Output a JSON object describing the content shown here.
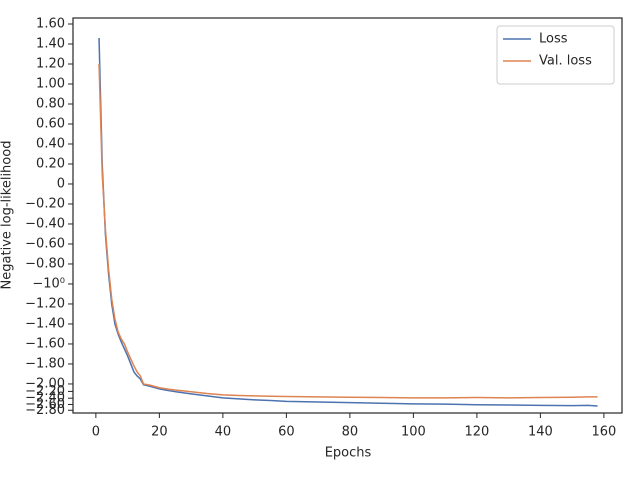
{
  "chart_data": {
    "type": "line",
    "xlabel": "Epochs",
    "ylabel": "Negative log-likelihood",
    "yscale": "symlog",
    "linthresh": 2,
    "x": [
      1,
      2,
      3,
      4,
      5,
      6,
      7,
      8,
      9,
      10,
      11,
      12,
      13,
      14,
      15,
      17,
      20,
      23,
      26,
      30,
      35,
      40,
      45,
      50,
      55,
      60,
      70,
      80,
      90,
      100,
      110,
      120,
      130,
      140,
      150,
      155,
      158
    ],
    "series": [
      {
        "name": "Loss",
        "color": "#4c72b0",
        "values": [
          1.46,
          0.2,
          -0.5,
          -0.9,
          -1.2,
          -1.4,
          -1.5,
          -1.58,
          -1.65,
          -1.72,
          -1.8,
          -1.88,
          -1.92,
          -1.95,
          -2.02,
          -2.06,
          -2.13,
          -2.18,
          -2.22,
          -2.27,
          -2.33,
          -2.39,
          -2.42,
          -2.45,
          -2.47,
          -2.5,
          -2.52,
          -2.54,
          -2.56,
          -2.58,
          -2.59,
          -2.61,
          -2.62,
          -2.63,
          -2.64,
          -2.63,
          -2.65
        ]
      },
      {
        "name": "Val. loss",
        "color": "#dd8452",
        "values": [
          1.2,
          0.1,
          -0.45,
          -0.85,
          -1.15,
          -1.35,
          -1.48,
          -1.55,
          -1.6,
          -1.68,
          -1.75,
          -1.82,
          -1.88,
          -1.92,
          -2.0,
          -2.03,
          -2.1,
          -2.14,
          -2.17,
          -2.21,
          -2.26,
          -2.3,
          -2.32,
          -2.33,
          -2.34,
          -2.35,
          -2.36,
          -2.37,
          -2.38,
          -2.39,
          -2.39,
          -2.38,
          -2.39,
          -2.38,
          -2.37,
          -2.36,
          -2.36
        ]
      }
    ],
    "xlim": [
      -7.2,
      165.7
    ],
    "ylim": [
      -2.9,
      1.66
    ],
    "xticks": [
      0,
      20,
      40,
      60,
      80,
      100,
      120,
      140,
      160
    ],
    "yticks": [
      {
        "value": 1.6,
        "label": "1.60"
      },
      {
        "value": 1.4,
        "label": "1.40"
      },
      {
        "value": 1.2,
        "label": "1.20"
      },
      {
        "value": 1,
        "label": "1.00"
      },
      {
        "value": 0.8,
        "label": "0.80"
      },
      {
        "value": 0.6,
        "label": "0.60"
      },
      {
        "value": 0.4,
        "label": "0.40"
      },
      {
        "value": 0.2,
        "label": "0.20"
      },
      0,
      {
        "value": -0.2,
        "label": "−0.20"
      },
      {
        "value": -0.4,
        "label": "−0.40"
      },
      {
        "value": -0.6,
        "label": "−0.60"
      },
      {
        "value": -0.8,
        "label": "−0.80"
      },
      {
        "value": -1,
        "label": "−10⁰"
      },
      {
        "value": -1.2,
        "label": "−1.20"
      },
      {
        "value": -1.4,
        "label": "−1.40"
      },
      {
        "value": -1.6,
        "label": "−1.60"
      },
      {
        "value": -1.8,
        "label": "−1.80"
      },
      {
        "value": -2,
        "label": "−2.00"
      },
      {
        "value": -2.2,
        "label": "−2.20"
      },
      {
        "value": -2.4,
        "label": "−2.40"
      },
      {
        "value": -2.6,
        "label": "−2.60"
      },
      {
        "value": -2.8,
        "label": "−2.80"
      }
    ],
    "legend": "upper right"
  }
}
